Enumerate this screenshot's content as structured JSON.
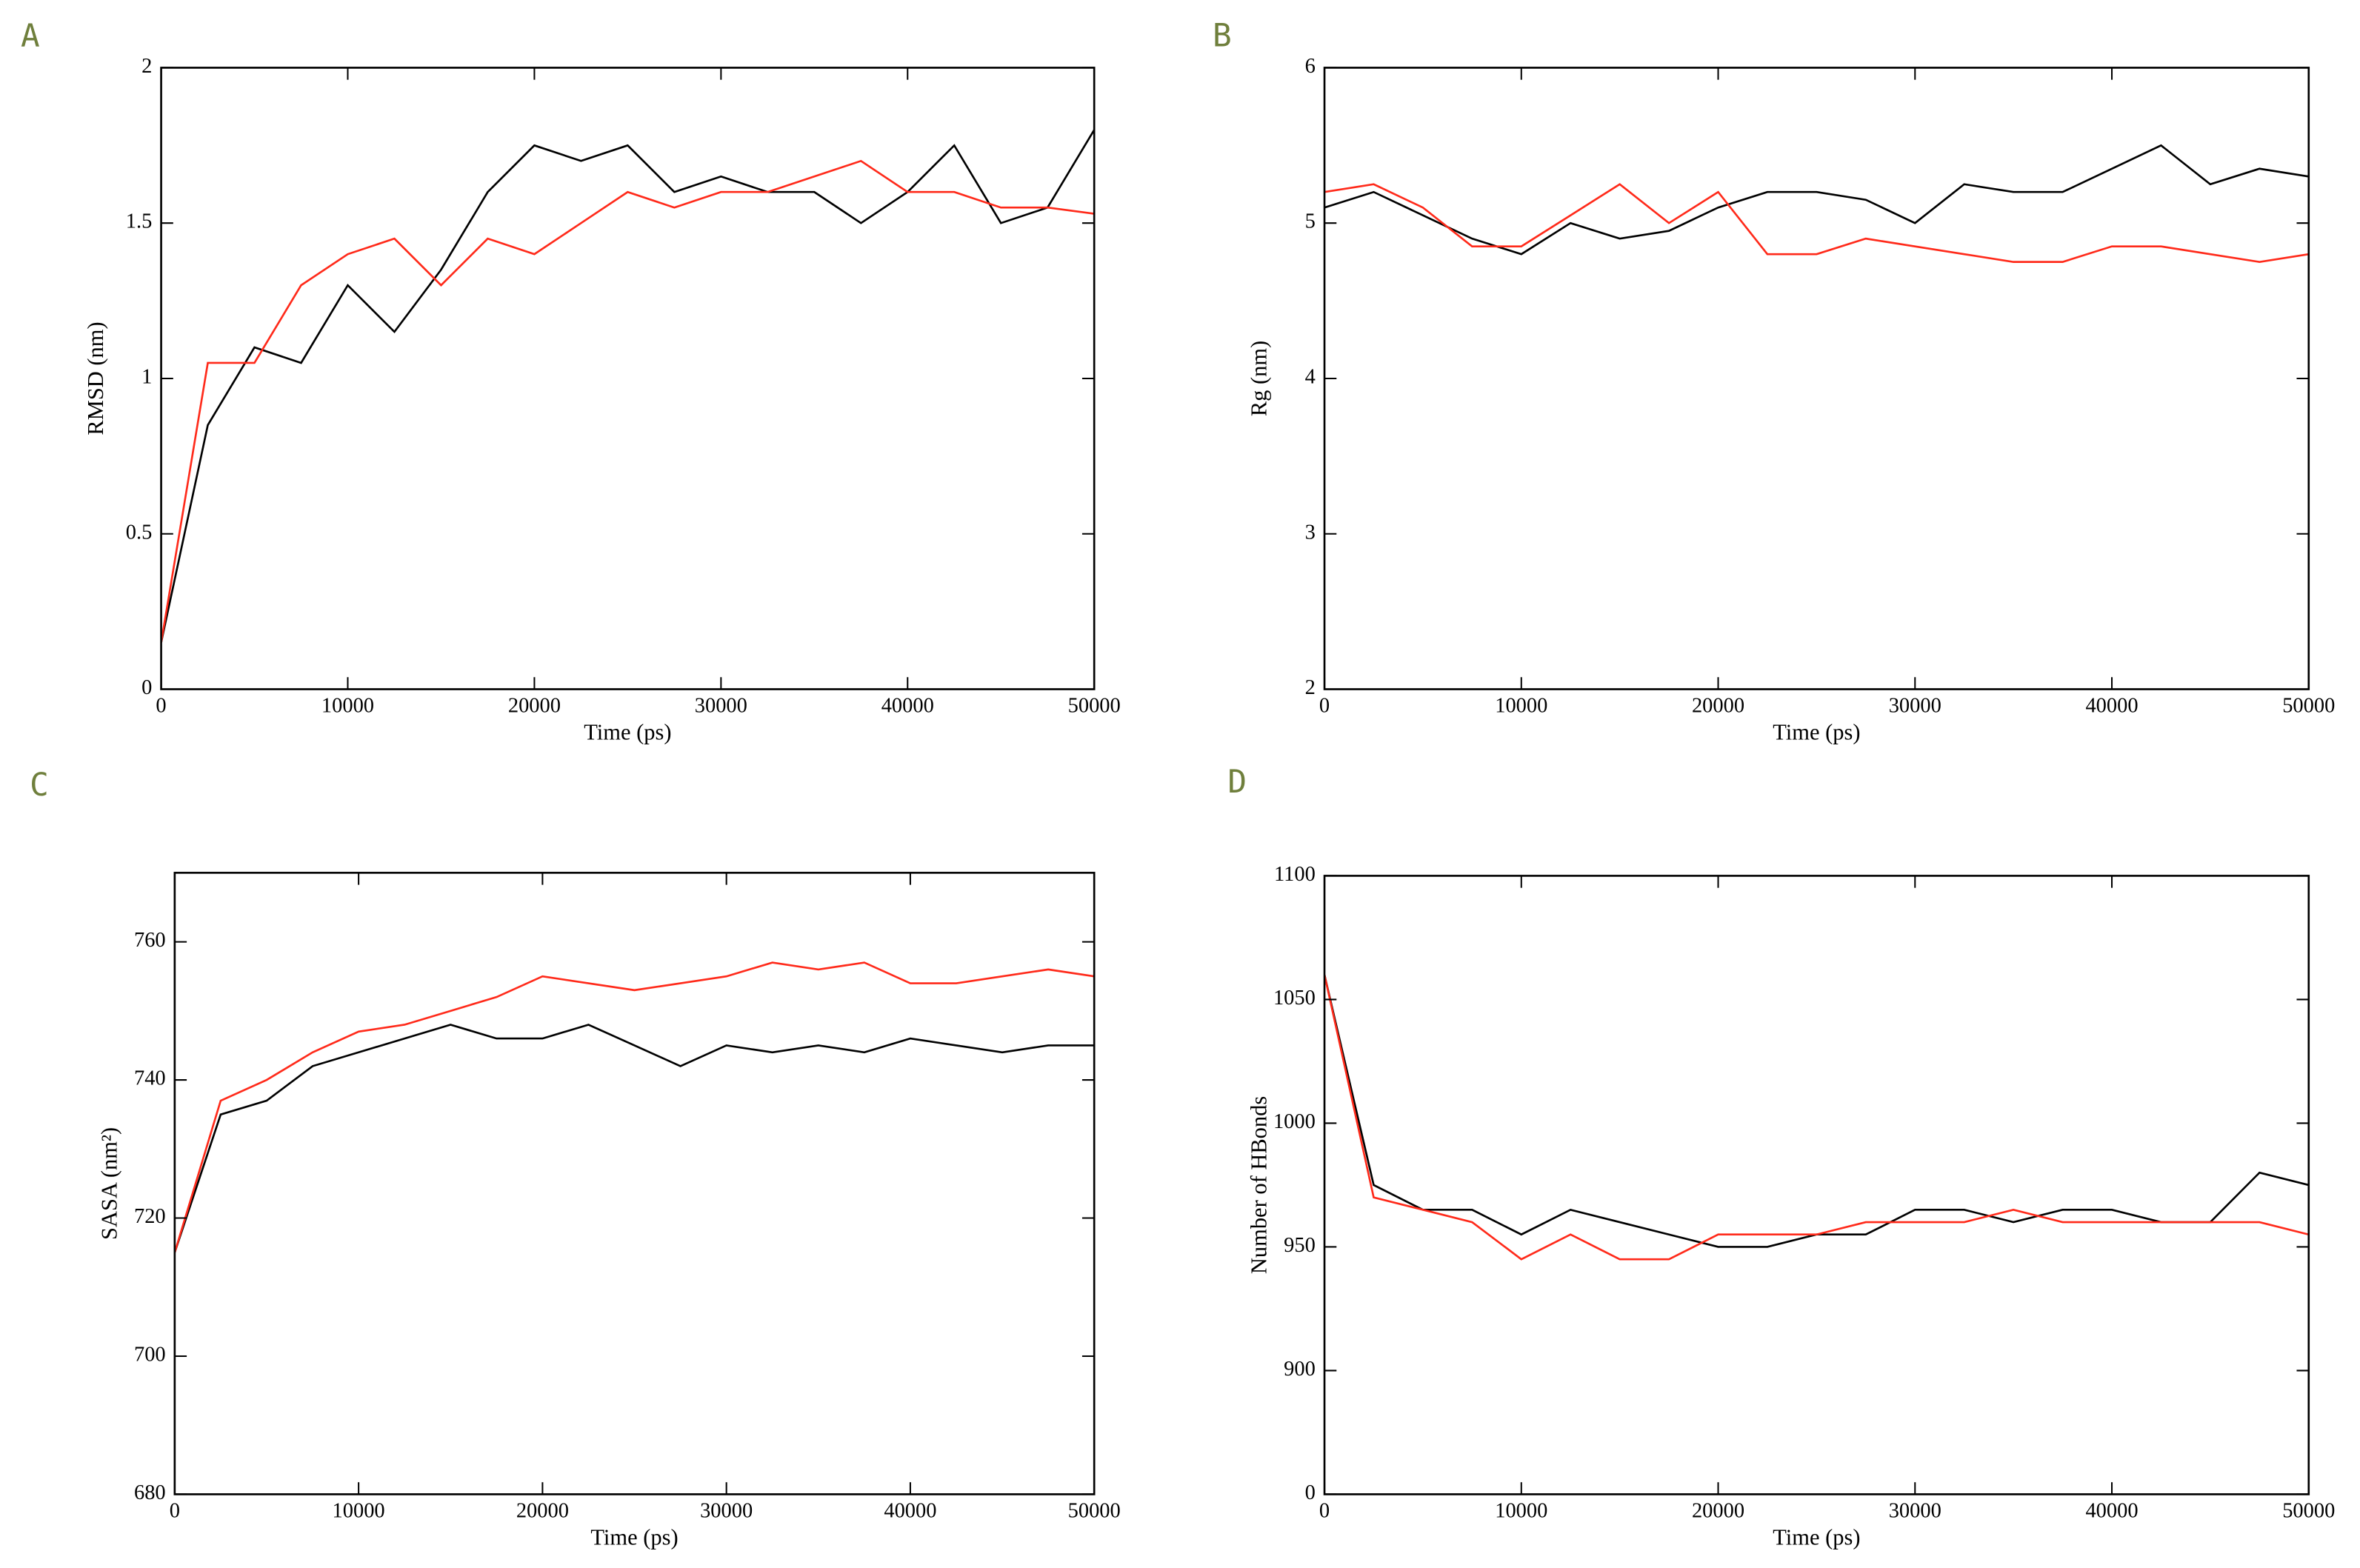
{
  "chart_data": [
    {
      "type": "line",
      "panel": "A",
      "xlabel": "Time (ps)",
      "ylabel": "RMSD (nm)",
      "x": [
        0,
        2500,
        5000,
        7500,
        10000,
        12500,
        15000,
        17500,
        20000,
        22500,
        25000,
        27500,
        30000,
        32500,
        35000,
        37500,
        40000,
        42500,
        45000,
        47500,
        50000
      ],
      "series": [
        {
          "color": "#000000",
          "values": [
            0.15,
            0.85,
            1.1,
            1.05,
            1.3,
            1.15,
            1.35,
            1.6,
            1.75,
            1.7,
            1.75,
            1.6,
            1.65,
            1.6,
            1.6,
            1.5,
            1.6,
            1.75,
            1.5,
            1.55,
            1.8
          ]
        },
        {
          "color": "#ff2a1a",
          "values": [
            0.15,
            1.05,
            1.05,
            1.3,
            1.4,
            1.45,
            1.3,
            1.45,
            1.4,
            1.5,
            1.6,
            1.55,
            1.6,
            1.6,
            1.65,
            1.7,
            1.6,
            1.6,
            1.55,
            1.55,
            1.53
          ]
        }
      ],
      "xlim": [
        0,
        50000
      ],
      "xticks": [
        0,
        10000,
        20000,
        30000,
        40000,
        50000
      ],
      "ylim": [
        0,
        2
      ],
      "yticks": [
        0,
        0.5,
        1,
        1.5,
        2
      ]
    },
    {
      "type": "line",
      "panel": "B",
      "xlabel": "Time (ps)",
      "ylabel": "Rg (nm)",
      "x": [
        0,
        2500,
        5000,
        7500,
        10000,
        12500,
        15000,
        17500,
        20000,
        22500,
        25000,
        27500,
        30000,
        32500,
        35000,
        37500,
        40000,
        42500,
        45000,
        47500,
        50000
      ],
      "series": [
        {
          "color": "#000000",
          "values": [
            5.1,
            5.2,
            5.05,
            4.9,
            4.8,
            5.0,
            4.9,
            4.95,
            5.1,
            5.2,
            5.2,
            5.15,
            5.0,
            5.25,
            5.2,
            5.2,
            5.35,
            5.5,
            5.25,
            5.35,
            5.3
          ]
        },
        {
          "color": "#ff2a1a",
          "values": [
            5.2,
            5.25,
            5.1,
            4.85,
            4.85,
            5.05,
            5.25,
            5.0,
            5.2,
            4.8,
            4.8,
            4.9,
            4.85,
            4.8,
            4.75,
            4.75,
            4.85,
            4.85,
            4.8,
            4.75,
            4.8
          ]
        }
      ],
      "xlim": [
        0,
        50000
      ],
      "xticks": [
        0,
        10000,
        20000,
        30000,
        40000,
        50000
      ],
      "ylim": [
        2,
        6
      ],
      "yticks": [
        2,
        3,
        4,
        5,
        6
      ]
    },
    {
      "type": "line",
      "panel": "C",
      "xlabel": "Time (ps)",
      "ylabel": "SASA (nm²)",
      "x": [
        0,
        2500,
        5000,
        7500,
        10000,
        12500,
        15000,
        17500,
        20000,
        22500,
        25000,
        27500,
        30000,
        32500,
        35000,
        37500,
        40000,
        42500,
        45000,
        47500,
        50000
      ],
      "series": [
        {
          "color": "#000000",
          "values": [
            715,
            735,
            737,
            742,
            744,
            746,
            748,
            746,
            746,
            748,
            745,
            742,
            745,
            744,
            745,
            744,
            746,
            745,
            744,
            745,
            745
          ]
        },
        {
          "color": "#ff2a1a",
          "values": [
            715,
            737,
            740,
            744,
            747,
            748,
            750,
            752,
            755,
            754,
            753,
            754,
            755,
            757,
            756,
            757,
            754,
            754,
            755,
            756,
            755
          ]
        }
      ],
      "xlim": [
        0,
        50000
      ],
      "xticks": [
        0,
        10000,
        20000,
        30000,
        40000,
        50000
      ],
      "ylim": [
        680,
        770
      ],
      "yticks": [
        680,
        700,
        720,
        740,
        760
      ]
    },
    {
      "type": "line",
      "panel": "D",
      "xlabel": "Time (ps)",
      "ylabel": "Number of HBonds",
      "x": [
        0,
        2500,
        5000,
        7500,
        10000,
        12500,
        15000,
        17500,
        20000,
        22500,
        25000,
        27500,
        30000,
        32500,
        35000,
        37500,
        40000,
        42500,
        45000,
        47500,
        50000
      ],
      "series": [
        {
          "color": "#000000",
          "values": [
            1060,
            975,
            965,
            965,
            955,
            965,
            960,
            955,
            950,
            950,
            955,
            955,
            965,
            965,
            960,
            965,
            965,
            960,
            960,
            980,
            975
          ]
        },
        {
          "color": "#ff2a1a",
          "values": [
            1060,
            970,
            965,
            960,
            945,
            955,
            945,
            945,
            955,
            955,
            955,
            960,
            960,
            960,
            965,
            960,
            960,
            960,
            960,
            960,
            955
          ]
        }
      ],
      "xlim": [
        0,
        50000
      ],
      "xticks": [
        0,
        10000,
        20000,
        30000,
        40000,
        50000
      ],
      "ylim": [
        850,
        1100
      ],
      "yticks": [
        {
          "value": 850,
          "label": "0"
        },
        900,
        950,
        1000,
        1050,
        1100
      ]
    }
  ]
}
